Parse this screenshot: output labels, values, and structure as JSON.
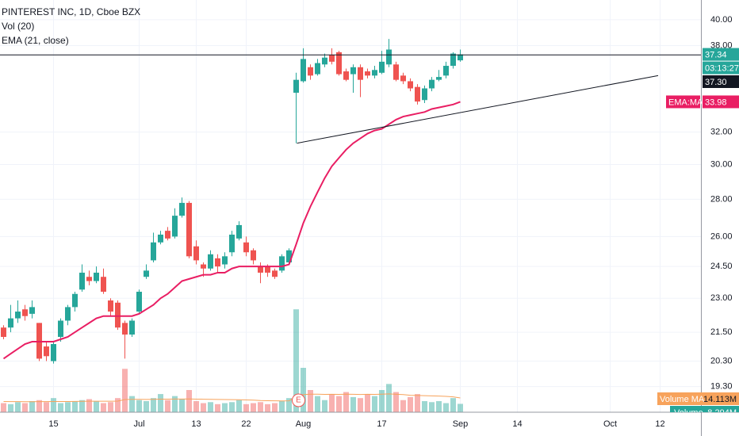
{
  "chart_data": {
    "type": "candlestick",
    "title": "PINTEREST INC, 1D, Cboe BZX",
    "log_scale": true,
    "grid": true,
    "up_color": "#26a69a",
    "down_color": "#ef5350",
    "categories": [
      null,
      null,
      null,
      null,
      null,
      null,
      null,
      "15",
      null,
      null,
      null,
      null,
      null,
      null,
      null,
      null,
      null,
      null,
      null,
      "Jul",
      null,
      null,
      null,
      null,
      null,
      null,
      null,
      "13",
      null,
      null,
      null,
      null,
      null,
      null,
      "22",
      null,
      null,
      null,
      null,
      null,
      null,
      null,
      "Aug",
      null,
      null,
      null,
      null,
      null,
      null,
      null,
      null,
      null,
      null,
      "17",
      null,
      null,
      null,
      null,
      null,
      null,
      null,
      null,
      null,
      null,
      "Sep",
      null,
      null,
      null,
      null,
      null,
      null,
      null,
      "14",
      null,
      null,
      null,
      null,
      null,
      null,
      null,
      null,
      null,
      null,
      null,
      null,
      "Oct",
      null,
      null,
      null,
      null,
      null,
      null,
      "12",
      null,
      null,
      null,
      null,
      null
    ],
    "open": [
      21.7,
      21.7,
      22.1,
      22.5,
      22.3,
      21.9,
      20.9,
      20.3,
      21.3,
      22.0,
      22.6,
      23.4,
      24.0,
      23.8,
      24.0,
      22.9,
      22.8,
      21.9,
      21.4,
      22.4,
      24.0,
      24.8,
      25.7,
      26.3,
      26.0,
      27.1,
      27.8,
      25.5,
      24.6,
      24.4,
      24.9,
      24.6,
      25.2,
      25.9,
      25.7,
      25.3,
      24.5,
      24.5,
      24.3,
      24.3,
      24.7,
      34.6,
      35.4,
      36.4,
      35.9,
      36.6,
      37.3,
      37.5,
      36.1,
      35.9,
      36.4,
      36.1,
      35.8,
      36.0,
      36.6,
      36.6,
      35.8,
      35.4,
      35.0,
      34.1,
      34.9,
      35.5,
      35.8,
      36.5,
      36.9,
      null,
      null,
      null,
      null,
      null,
      null,
      null,
      null,
      null,
      null,
      null,
      null,
      null,
      null,
      null,
      null,
      null,
      null,
      null,
      null,
      null,
      null,
      null,
      null,
      null,
      null,
      null,
      null,
      null,
      null,
      null,
      null,
      null
    ],
    "high": [
      21.8,
      22.7,
      22.9,
      22.7,
      22.9,
      21.9,
      21.1,
      21.1,
      22.1,
      22.7,
      23.3,
      24.6,
      24.3,
      24.5,
      24.4,
      23.0,
      22.9,
      22.0,
      22.1,
      23.4,
      24.6,
      26.2,
      26.3,
      26.5,
      27.5,
      28.1,
      27.9,
      25.8,
      24.7,
      25.3,
      25.1,
      25.2,
      26.3,
      26.8,
      26.0,
      25.4,
      24.7,
      24.6,
      24.4,
      25.1,
      25.4,
      36.0,
      37.8,
      36.6,
      37.0,
      37.4,
      37.8,
      37.6,
      36.3,
      36.6,
      36.6,
      36.3,
      36.5,
      37.6,
      38.5,
      36.8,
      36.0,
      35.6,
      35.2,
      35.1,
      35.7,
      36.2,
      36.8,
      37.5,
      37.7,
      null,
      null,
      null,
      null,
      null,
      null,
      null,
      null,
      null,
      null,
      null,
      null,
      null,
      null,
      null,
      null,
      null,
      null,
      null,
      null,
      null,
      null,
      null,
      null,
      null,
      null,
      null,
      null,
      null,
      null,
      null,
      null,
      null
    ],
    "low": [
      21.2,
      21.5,
      21.9,
      22.0,
      22.1,
      20.3,
      20.3,
      20.2,
      21.1,
      21.8,
      22.4,
      23.3,
      23.6,
      23.7,
      23.2,
      22.2,
      21.6,
      20.4,
      21.3,
      22.3,
      23.9,
      24.7,
      25.6,
      25.8,
      25.9,
      27.0,
      24.9,
      24.6,
      24.0,
      24.3,
      24.2,
      24.4,
      25.0,
      25.8,
      25.0,
      24.6,
      23.7,
      24.0,
      23.9,
      24.2,
      24.6,
      31.3,
      35.3,
      35.5,
      35.8,
      36.4,
      36.6,
      35.8,
      35.4,
      34.6,
      34.3,
      35.6,
      35.6,
      35.9,
      36.4,
      35.4,
      35.2,
      34.7,
      33.8,
      33.9,
      34.7,
      35.4,
      35.6,
      36.3,
      36.8,
      null,
      null,
      null,
      null,
      null,
      null,
      null,
      null,
      null,
      null,
      null,
      null,
      null,
      null,
      null,
      null,
      null,
      null,
      null,
      null,
      null,
      null,
      null,
      null,
      null,
      null,
      null,
      null,
      null,
      null,
      null,
      null,
      null
    ],
    "close": [
      21.3,
      22.1,
      22.4,
      22.2,
      22.6,
      20.4,
      20.5,
      21.0,
      22.0,
      22.6,
      23.2,
      24.2,
      23.8,
      24.2,
      23.3,
      22.4,
      21.7,
      21.4,
      22.0,
      23.3,
      24.3,
      25.7,
      26.1,
      25.9,
      27.1,
      27.8,
      25.0,
      24.8,
      24.4,
      25.1,
      24.5,
      25.0,
      26.1,
      26.6,
      25.2,
      24.8,
      24.2,
      24.2,
      24.0,
      25.0,
      25.3,
      35.5,
      37.0,
      35.8,
      36.7,
      37.1,
      36.8,
      35.9,
      35.5,
      36.4,
      35.5,
      35.8,
      36.2,
      36.8,
      37.7,
      35.5,
      35.4,
      34.9,
      34.0,
      34.9,
      35.5,
      35.7,
      36.5,
      37.4,
      37.34,
      null,
      null,
      null,
      null,
      null,
      null,
      null,
      null,
      null,
      null,
      null,
      null,
      null,
      null,
      null,
      null,
      null,
      null,
      null,
      null,
      null,
      null,
      null,
      null,
      null,
      null,
      null,
      null,
      null,
      null,
      null,
      null,
      null
    ],
    "last_price": 37.34,
    "countdown": "03:13:27",
    "ylim": [
      18.34,
      41.6
    ],
    "yticks": [
      {
        "value": 40,
        "label": "40.00"
      },
      {
        "value": 38,
        "label": "38.00"
      },
      {
        "value": 32,
        "label": "32.00"
      },
      {
        "value": 30,
        "label": "30.00"
      },
      {
        "value": 28,
        "label": "28.00"
      },
      {
        "value": 26,
        "label": "26.00"
      },
      {
        "value": 24.5,
        "label": "24.50"
      },
      {
        "value": 23,
        "label": "23.00"
      },
      {
        "value": 21.5,
        "label": "21.50"
      },
      {
        "value": 20.3,
        "label": "20.30"
      },
      {
        "value": 19.3,
        "label": "19.30"
      }
    ],
    "horizontal_line": {
      "value": 37.3,
      "label": "37.30"
    },
    "trend_line": {
      "start": 31.3,
      "end": 35.8
    },
    "earnings_marker": "E",
    "ema": {
      "name": "EMA (21, close)",
      "badge": "EMA:MA",
      "color": "#e91e63",
      "values": [
        20.4,
        20.6,
        20.8,
        21.0,
        21.1,
        21.1,
        21.1,
        21.1,
        21.2,
        21.3,
        21.5,
        21.7,
        21.9,
        22.1,
        22.2,
        22.2,
        22.2,
        22.2,
        22.2,
        22.3,
        22.5,
        22.7,
        23.0,
        23.2,
        23.5,
        23.8,
        23.9,
        24.0,
        24.1,
        24.1,
        24.2,
        24.2,
        24.4,
        24.5,
        24.5,
        24.5,
        24.5,
        24.5,
        24.5,
        24.5,
        24.6,
        25.6,
        26.7,
        27.6,
        28.4,
        29.2,
        29.9,
        30.4,
        30.9,
        31.3,
        31.6,
        31.9,
        32.1,
        32.2,
        32.5,
        32.8,
        33.0,
        33.1,
        33.2,
        33.3,
        33.5,
        33.6,
        33.7,
        33.8,
        33.98,
        null,
        null,
        null,
        null,
        null,
        null,
        null,
        null,
        null,
        null,
        null,
        null,
        null,
        null,
        null,
        null,
        null,
        null,
        null,
        null,
        null,
        null,
        null,
        null,
        null,
        null,
        null,
        null,
        null,
        null,
        null,
        null,
        null
      ]
    },
    "volume": {
      "name": "Vol (20)",
      "badge": "Volume",
      "last_label": "8.294M",
      "ylim": [
        0,
        110
      ],
      "values": [
        9,
        8,
        10,
        9,
        11,
        12,
        10,
        14,
        9,
        10,
        11,
        12,
        13,
        11,
        9,
        10,
        14,
        43,
        16,
        12,
        11,
        14,
        18,
        12,
        16,
        13,
        22,
        11,
        9,
        10,
        8,
        9,
        10,
        12,
        8,
        9,
        10,
        8,
        9,
        11,
        14,
        102,
        44,
        22,
        16,
        12,
        18,
        16,
        20,
        15,
        14,
        18,
        16,
        22,
        28,
        20,
        12,
        15,
        18,
        11,
        10,
        11,
        9,
        14,
        8.294,
        null,
        null,
        null,
        null,
        null,
        null,
        null,
        null,
        null,
        null,
        null,
        null,
        null,
        null,
        null,
        null,
        null,
        null,
        null,
        null,
        null,
        null,
        null,
        null,
        null,
        null,
        null,
        null,
        null,
        null,
        null,
        null,
        null
      ],
      "ma": {
        "badge": "Volume MA",
        "last_label": "14.113M",
        "color": "#f7a35c",
        "values": [
          10.6,
          10.5,
          10.5,
          10.4,
          10.4,
          10.5,
          10.5,
          10.6,
          10.6,
          10.6,
          10.7,
          10.8,
          10.9,
          10.9,
          10.9,
          10.9,
          11.0,
          12.6,
          12.8,
          12.8,
          12.7,
          12.8,
          13.0,
          13.0,
          13.1,
          13.1,
          13.2,
          13.0,
          12.9,
          12.8,
          12.7,
          12.6,
          12.5,
          12.4,
          12.2,
          12.0,
          11.6,
          11.4,
          11.3,
          11.2,
          11.3,
          15.8,
          17.5,
          17.9,
          17.9,
          17.7,
          17.8,
          17.7,
          17.9,
          17.8,
          17.6,
          17.8,
          17.7,
          17.9,
          18.2,
          17.8,
          17.5,
          16.8,
          16.6,
          16.4,
          16.2,
          16.0,
          15.7,
          15.2,
          14.113,
          null,
          null,
          null,
          null,
          null,
          null,
          null,
          null,
          null,
          null,
          null,
          null,
          null,
          null,
          null,
          null,
          null,
          null,
          null,
          null,
          null,
          null,
          null,
          null,
          null,
          null,
          null,
          null,
          null,
          null,
          null,
          null,
          null
        ]
      }
    }
  }
}
